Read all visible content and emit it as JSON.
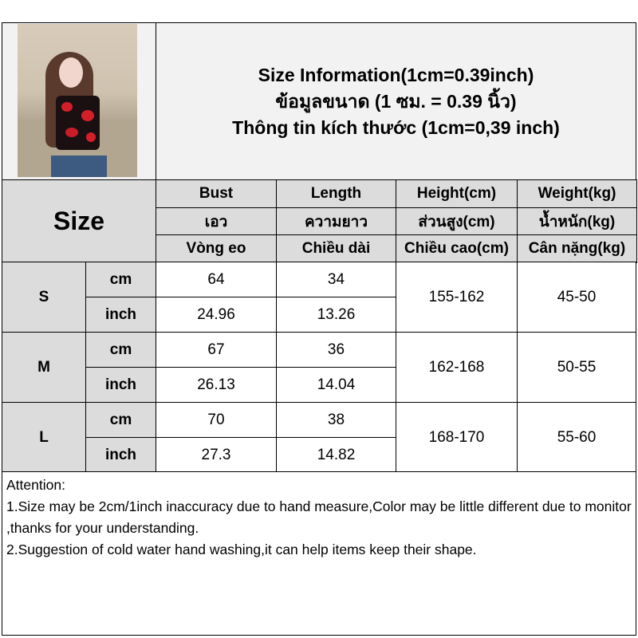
{
  "title": {
    "line1": "Size Information(1cm=0.39inch)",
    "line2": "ข้อมูลขนาด (1 ซม. = 0.39 นิ้ว)",
    "line3": "Thông tin kích thước (1cm=0,39 inch)"
  },
  "size_label": "Size",
  "headers": [
    [
      "Bust",
      "Length",
      "Height(cm)",
      "Weight(kg)"
    ],
    [
      "เอว",
      "ความยาว",
      "ส่วนสูง(cm)",
      "น้ำหนัก(kg)"
    ],
    [
      "Vòng eo",
      "Chiều dài",
      "Chiều cao(cm)",
      "Cân nặng(kg)"
    ]
  ],
  "rows": [
    {
      "size": "S",
      "cm_label": "cm",
      "inch_label": "inch",
      "bust_cm": "64",
      "length_cm": "34",
      "bust_inch": "24.96",
      "length_inch": "13.26",
      "height": "155-162",
      "weight": "45-50"
    },
    {
      "size": "M",
      "cm_label": "cm",
      "inch_label": "inch",
      "bust_cm": "67",
      "length_cm": "36",
      "bust_inch": "26.13",
      "length_inch": "14.04",
      "height": "162-168",
      "weight": "50-55"
    },
    {
      "size": "L",
      "cm_label": "cm",
      "inch_label": "inch",
      "bust_cm": "70",
      "length_cm": "38",
      "bust_inch": "27.3",
      "length_inch": "14.82",
      "height": "168-170",
      "weight": "55-60"
    }
  ],
  "attention": {
    "heading": "Attention:",
    "note1": "1.Size may be 2cm/1inch inaccuracy due to hand measure,Color may be little different due to monitor ,thanks for your understanding.",
    "note2": "2.Suggestion of cold water hand washing,it can help items keep their shape."
  }
}
